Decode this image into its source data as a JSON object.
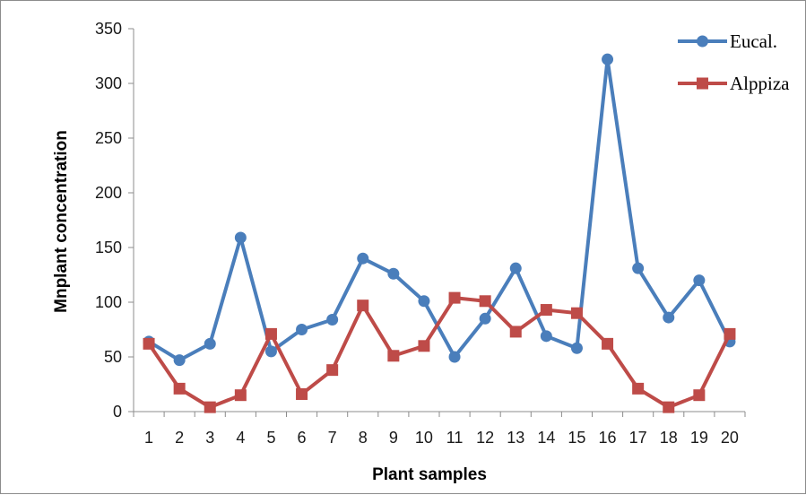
{
  "chart_data": {
    "type": "line",
    "title": "",
    "xlabel": "Plant samples",
    "ylabel": "Mnplant concentration",
    "categories": [
      "1",
      "2",
      "3",
      "4",
      "5",
      "6",
      "7",
      "8",
      "9",
      "10",
      "11",
      "12",
      "13",
      "14",
      "15",
      "16",
      "17",
      "18",
      "19",
      "20"
    ],
    "ylim": [
      0,
      350
    ],
    "yticks": [
      "0",
      "50",
      "100",
      "150",
      "200",
      "250",
      "300",
      "350"
    ],
    "grid": false,
    "legend_position": "top-right",
    "series": [
      {
        "name": "Eucal.",
        "color": "#4a7ebb",
        "marker": "circle",
        "values": [
          64,
          47,
          62,
          159,
          55,
          75,
          84,
          140,
          126,
          101,
          50,
          85,
          131,
          69,
          58,
          322,
          131,
          86,
          120,
          64
        ]
      },
      {
        "name": "Alppiza",
        "color": "#be4b48",
        "marker": "square",
        "values": [
          62,
          21,
          4,
          15,
          71,
          16,
          38,
          97,
          51,
          60,
          104,
          101,
          73,
          93,
          90,
          62,
          21,
          4,
          15,
          71
        ]
      }
    ]
  }
}
